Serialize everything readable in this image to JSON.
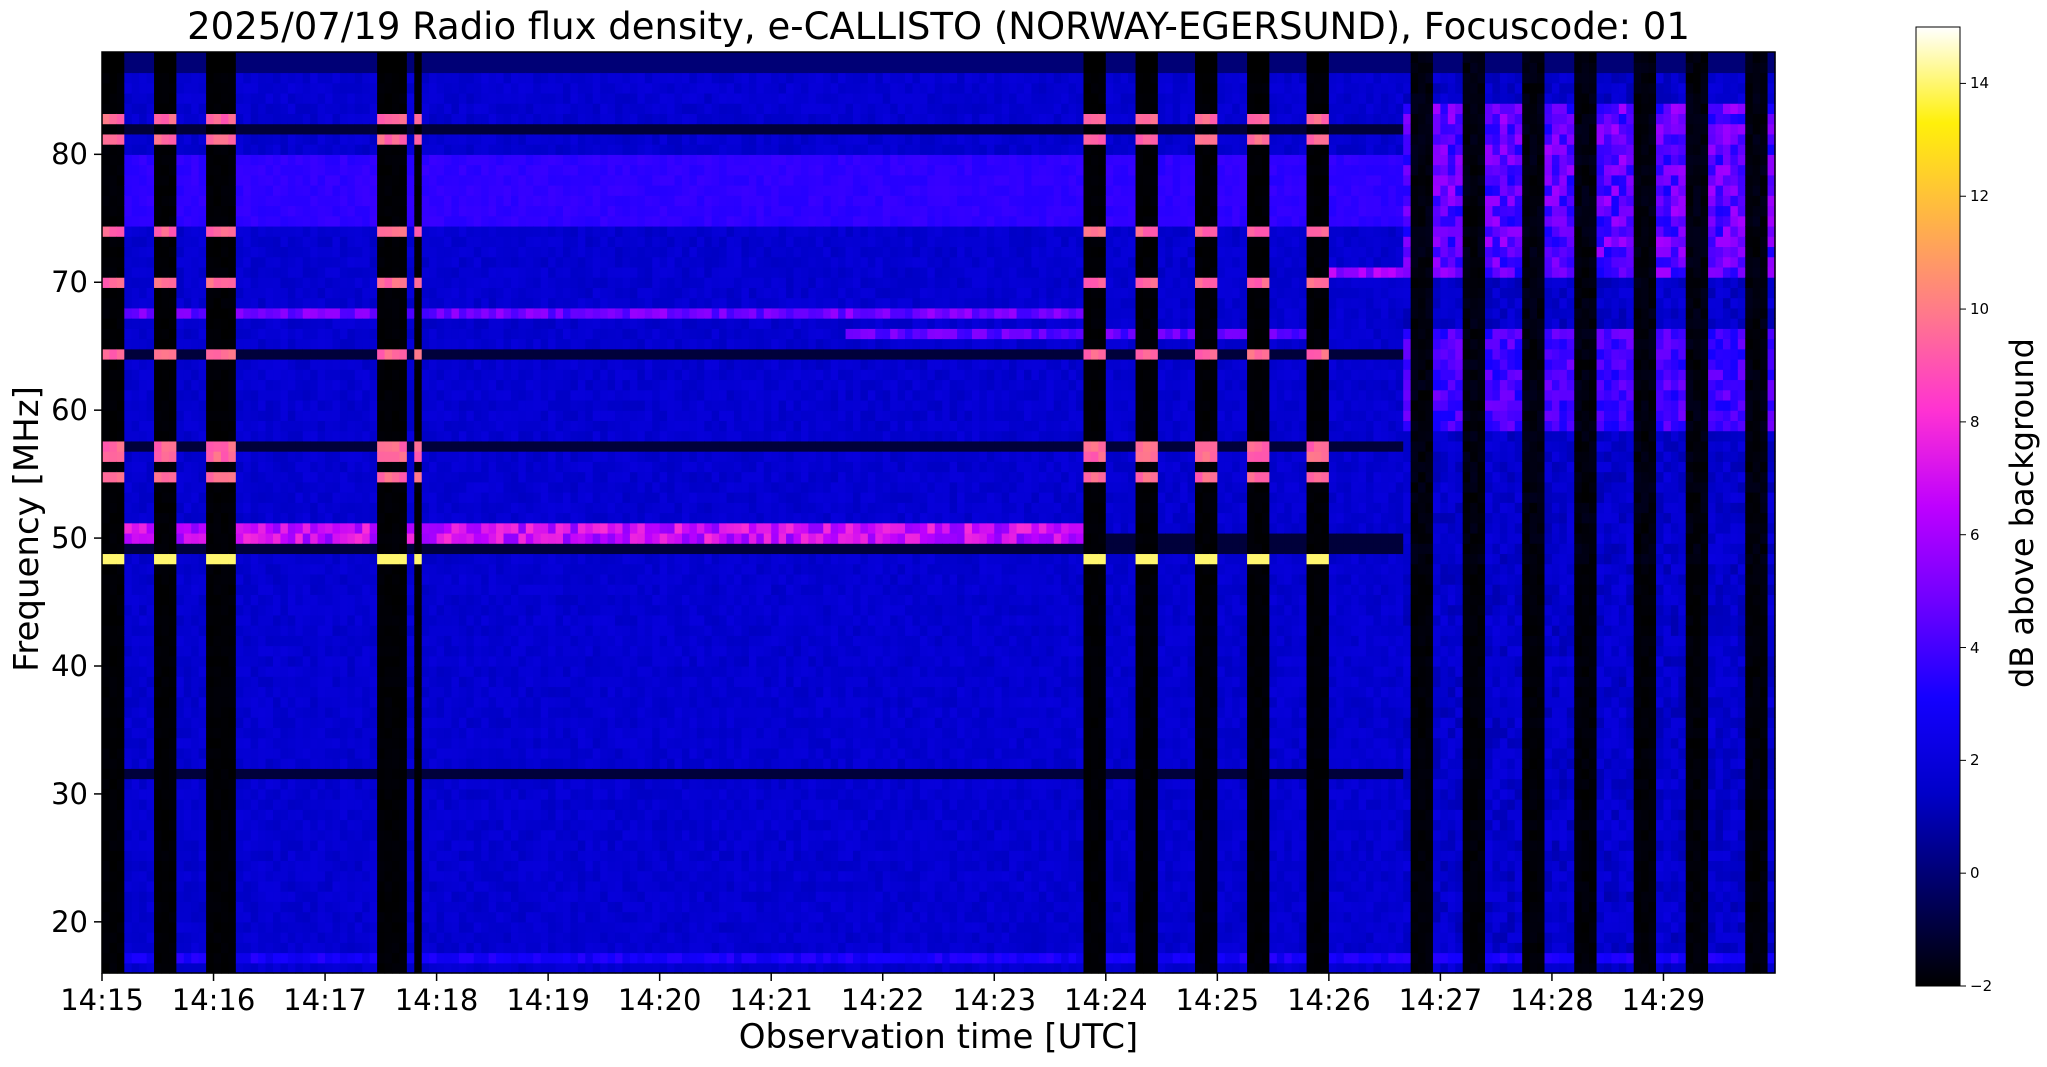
{
  "chart_data": {
    "type": "heatmap",
    "title": "2025/07/19  Radio flux density, e-CALLISTO (NORWAY-EGERSUND), Focuscode: 01",
    "xlabel": "Observation time [UTC]",
    "ylabel": "Frequency [MHz]",
    "colorbar_label": "dB above background",
    "colormap": "gnuplot2",
    "xticks": [
      "14:15",
      "14:16",
      "14:17",
      "14:18",
      "14:19",
      "14:20",
      "14:21",
      "14:22",
      "14:23",
      "14:24",
      "14:25",
      "14:26",
      "14:27",
      "14:28",
      "14:29"
    ],
    "x_range": [
      "14:15:00",
      "14:29:59"
    ],
    "yticks": [
      20,
      30,
      40,
      50,
      60,
      70,
      80
    ],
    "ylim": [
      16,
      88
    ],
    "colorbar_ticks": [
      -2,
      0,
      2,
      4,
      6,
      8,
      10,
      12,
      14
    ],
    "color_range": [
      -2,
      15
    ],
    "background_level_db": 2,
    "gap_columns": [
      {
        "start": "14:15:00",
        "end": "14:15:12"
      },
      {
        "start": "14:15:29",
        "end": "14:15:41"
      },
      {
        "start": "14:15:58",
        "end": "14:16:12"
      },
      {
        "start": "14:17:29",
        "end": "14:17:43"
      },
      {
        "start": "14:17:47",
        "end": "14:17:54"
      },
      {
        "start": "14:23:47",
        "end": "14:24:00"
      },
      {
        "start": "14:24:17",
        "end": "14:24:29"
      },
      {
        "start": "14:24:47",
        "end": "14:24:59"
      },
      {
        "start": "14:25:17",
        "end": "14:25:29"
      },
      {
        "start": "14:25:47",
        "end": "14:25:59"
      }
    ],
    "bright_lines_mhz_in_gaps": [
      83,
      81.5,
      74,
      70,
      64.5,
      57.5,
      56.5,
      54.5,
      48.5
    ],
    "persistent_bands": [
      {
        "freq_mhz": 50.4,
        "level_db": 9,
        "time_range": [
          "14:15:00",
          "14:23:47"
        ]
      },
      {
        "freq_mhz": 67.8,
        "level_db": 6.5,
        "time_range": [
          "14:15:00",
          "14:23:50"
        ]
      },
      {
        "freq_mhz": 66.2,
        "level_db": 6,
        "time_range": [
          "14:21:40",
          "14:26:00"
        ]
      },
      {
        "freq_mhz": 71.0,
        "level_db": 8,
        "time_range": [
          "14:26:00",
          "14:26:45"
        ]
      },
      {
        "freq_mhz": 17.5,
        "level_db": 4,
        "time_range": [
          "14:15:00",
          "14:29:59"
        ]
      }
    ],
    "burst_section": {
      "time_range": [
        "14:26:40",
        "14:29:59"
      ],
      "freq_range_mhz": [
        16,
        86
      ],
      "dark_columns": [
        {
          "start": "14:26:43",
          "end": "14:26:56"
        },
        {
          "start": "14:27:13",
          "end": "14:27:25"
        },
        {
          "start": "14:27:43",
          "end": "14:27:55"
        },
        {
          "start": "14:28:13",
          "end": "14:28:25"
        },
        {
          "start": "14:28:43",
          "end": "14:28:55"
        },
        {
          "start": "14:29:13",
          "end": "14:29:25"
        },
        {
          "start": "14:29:43",
          "end": "14:29:55"
        }
      ],
      "peak_level_db": 8
    }
  }
}
